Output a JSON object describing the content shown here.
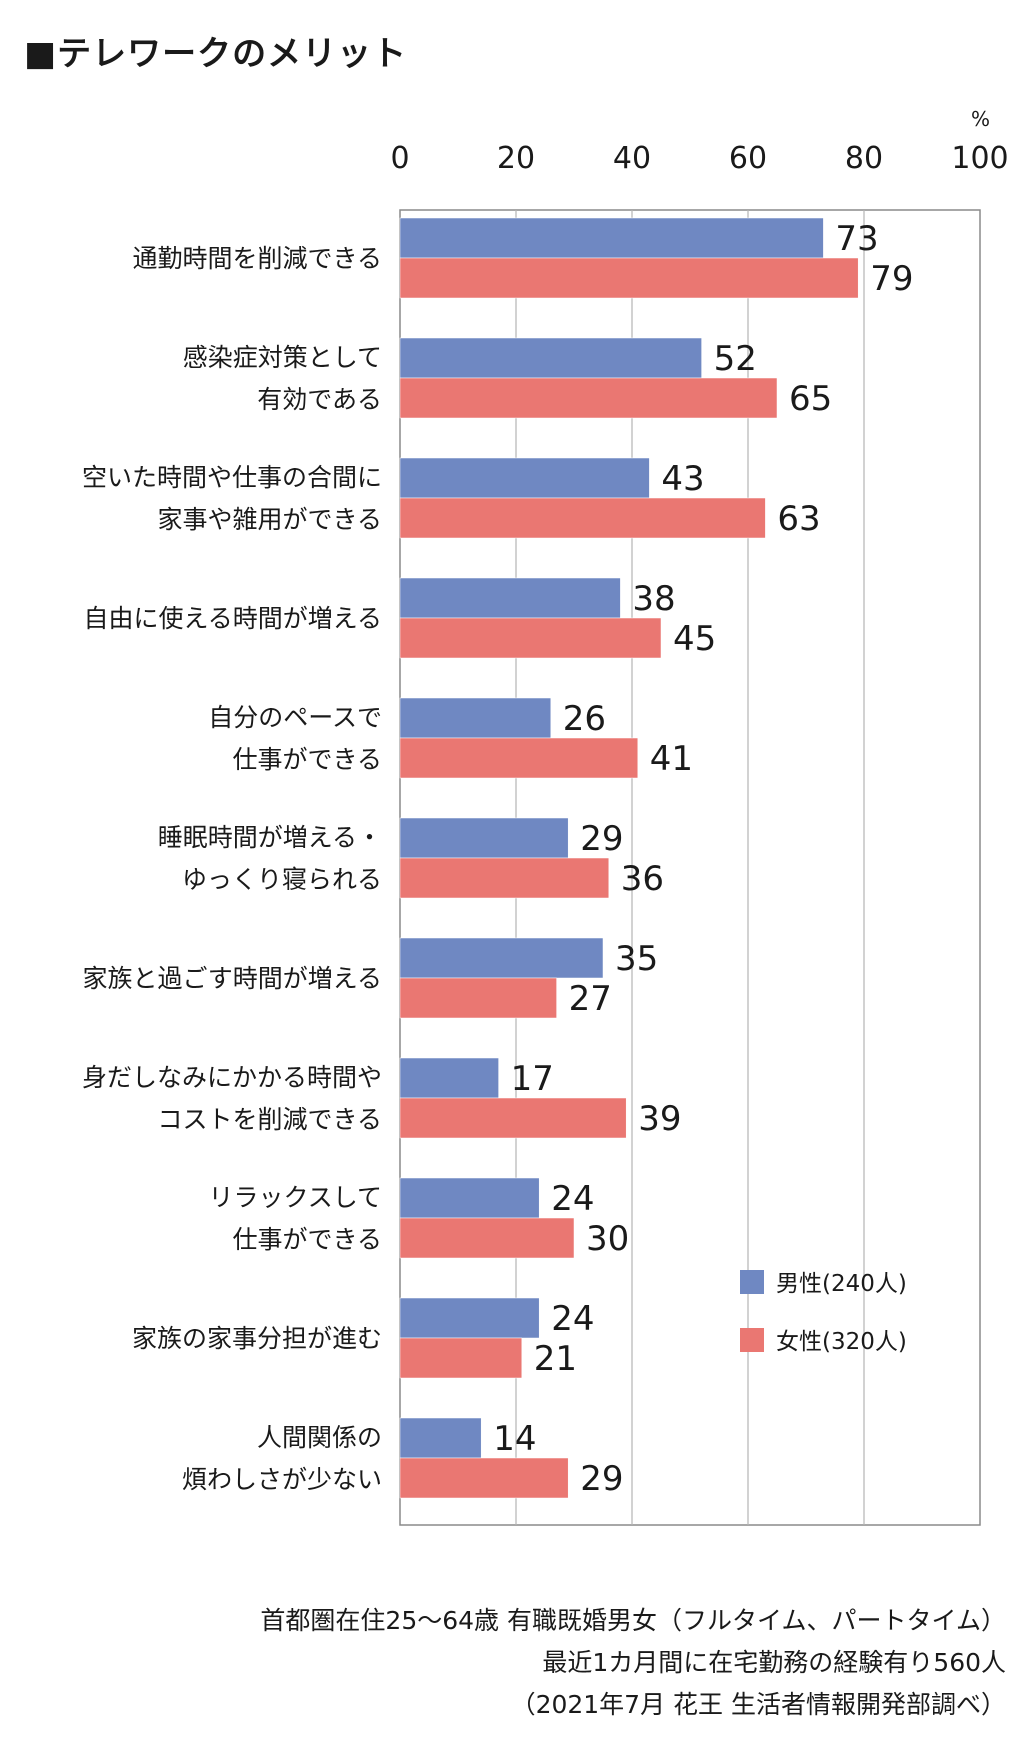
{
  "title": "■テレワークのメリット",
  "chart_data": {
    "type": "bar",
    "orientation": "horizontal",
    "title": "■テレワークのメリット",
    "xlabel": "%",
    "ylabel": "",
    "xlim": [
      0,
      100
    ],
    "ticks": [
      0,
      20,
      40,
      60,
      80,
      100
    ],
    "grid": true,
    "legend_position": "bottom-right",
    "categories": [
      [
        "通勤時間を削減できる"
      ],
      [
        "感染症対策として",
        "有効である"
      ],
      [
        "空いた時間や仕事の合間に",
        "家事や雑用ができる"
      ],
      [
        "自由に使える時間が増える"
      ],
      [
        "自分のペースで",
        "仕事ができる"
      ],
      [
        "睡眠時間が増える・",
        "ゆっくり寝られる"
      ],
      [
        "家族と過ごす時間が増える"
      ],
      [
        "身だしなみにかかる時間や",
        "コストを削減できる"
      ],
      [
        "リラックスして",
        "仕事ができる"
      ],
      [
        "家族の家事分担が進む"
      ],
      [
        "人間関係の",
        "煩わしさが少ない"
      ]
    ],
    "series": [
      {
        "name": "男性(240人)",
        "color": "#6f88c2",
        "values": [
          73,
          52,
          43,
          38,
          26,
          29,
          35,
          17,
          24,
          24,
          14
        ]
      },
      {
        "name": "女性(320人)",
        "color": "#ea7772",
        "values": [
          79,
          65,
          63,
          45,
          41,
          36,
          27,
          39,
          30,
          21,
          29
        ]
      }
    ]
  },
  "notes": [
    "首都圏在住25〜64歳 有職既婚男女（フルタイム、パートタイム）",
    "最近1カ月間に在宅勤務の経験有り560人",
    "（2021年7月 花王 生活者情報開発部調べ）"
  ]
}
